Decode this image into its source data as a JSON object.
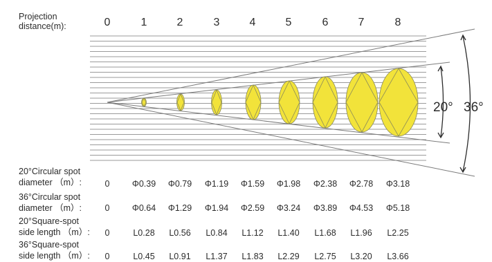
{
  "header_label_line1": "Projection",
  "header_label_line2": "distance(m):",
  "distances": [
    "0",
    "1",
    "2",
    "3",
    "4",
    "5",
    "6",
    "7",
    "8"
  ],
  "angle_labels": {
    "narrow": "20°",
    "wide": "36°"
  },
  "spot_color": "#f2e33a",
  "rows": [
    {
      "line1": "20°Circular spot",
      "line2": "diameter （m）:",
      "values": [
        "0",
        "Φ0.39",
        "Φ0.79",
        "Φ1.19",
        "Φ1.59",
        "Φ1.98",
        "Φ2.38",
        "Φ2.78",
        "Φ3.18"
      ]
    },
    {
      "line1": "36°Circular spot",
      "line2": "diameter （m）:",
      "values": [
        "0",
        "Φ0.64",
        "Φ1.29",
        "Φ1.94",
        "Φ2.59",
        "Φ3.24",
        "Φ3.89",
        "Φ4.53",
        "Φ5.18"
      ]
    },
    {
      "line1": "20°Square-spot",
      "line2": "side length （m）:",
      "values": [
        "0",
        "L0.28",
        "L0.56",
        "L0.84",
        "L1.12",
        "L1.40",
        "L1.68",
        "L1.96",
        "L2.25"
      ]
    },
    {
      "line1": "36°Square-spot",
      "line2": "side length （m）:",
      "values": [
        "0",
        "L0.45",
        "L0.91",
        "L1.37",
        "L1.83",
        "L2.29",
        "L2.75",
        "L3.20",
        "L3.66"
      ]
    }
  ]
}
